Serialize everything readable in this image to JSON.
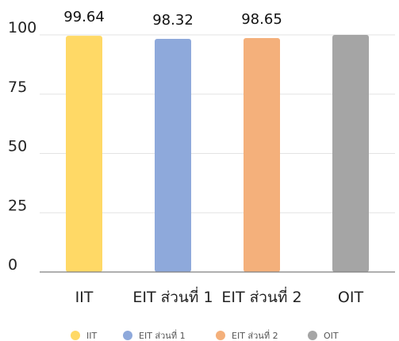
{
  "chart_data": {
    "type": "bar",
    "categories": [
      "IIT",
      "EIT ส่วนที่ 1",
      "EIT ส่วนที่ 2",
      "OIT"
    ],
    "values": [
      99.64,
      98.32,
      98.65,
      100
    ],
    "data_labels": [
      "99.64",
      "98.32",
      "98.65",
      ""
    ],
    "colors": [
      "#FFD966",
      "#8EA9DB",
      "#F4B07B",
      "#A5A5A5"
    ],
    "ylim": [
      0,
      100
    ],
    "yticks": [
      0,
      25,
      50,
      75,
      100
    ],
    "ytick_labels": [
      "0",
      "25",
      "50",
      "75",
      "100"
    ],
    "grid": true,
    "legend": {
      "position": "bottom",
      "items": [
        "IIT",
        "EIT ส่วนที่ 1",
        "EIT ส่วนที่ 2",
        "OIT"
      ]
    }
  }
}
